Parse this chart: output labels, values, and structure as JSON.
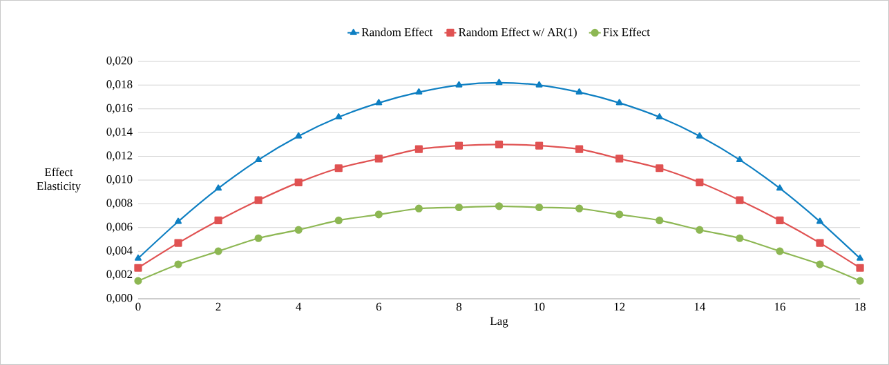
{
  "chart_data": {
    "type": "line",
    "xlabel": "Lag",
    "ylabel": "Effect Elasticity",
    "x": [
      0,
      1,
      2,
      3,
      4,
      5,
      6,
      7,
      8,
      9,
      10,
      11,
      12,
      13,
      14,
      15,
      16,
      17,
      18
    ],
    "series": [
      {
        "name": "Random Effect",
        "color": "#0e7fc2",
        "marker": "triangle",
        "values": [
          0.0034,
          0.0065,
          0.0093,
          0.0117,
          0.0137,
          0.0153,
          0.0165,
          0.0174,
          0.018,
          0.0182,
          0.018,
          0.0174,
          0.0165,
          0.0153,
          0.0137,
          0.0117,
          0.0093,
          0.0065,
          0.0034
        ]
      },
      {
        "name": "Random Effect w/ AR(1)",
        "color": "#e05252",
        "marker": "square",
        "values": [
          0.0026,
          0.0047,
          0.0066,
          0.0083,
          0.0098,
          0.011,
          0.0118,
          0.0126,
          0.0129,
          0.013,
          0.0129,
          0.0126,
          0.0118,
          0.011,
          0.0098,
          0.0083,
          0.0066,
          0.0047,
          0.0026
        ]
      },
      {
        "name": "Fix Effect",
        "color": "#8db753",
        "marker": "circle",
        "values": [
          0.0015,
          0.0029,
          0.004,
          0.0051,
          0.0058,
          0.0066,
          0.0071,
          0.0076,
          0.0077,
          0.0078,
          0.0077,
          0.0076,
          0.0071,
          0.0066,
          0.0058,
          0.0051,
          0.004,
          0.0029,
          0.0015
        ]
      }
    ],
    "xlim": [
      0,
      18
    ],
    "xticks": [
      0,
      2,
      4,
      6,
      8,
      10,
      12,
      14,
      16,
      18
    ],
    "ylim": [
      0,
      0.02
    ],
    "yticks": [
      {
        "value": 0,
        "label": "0,000"
      },
      {
        "value": 0.002,
        "label": "0,002"
      },
      {
        "value": 0.004,
        "label": "0,004"
      },
      {
        "value": 0.006,
        "label": "0,006"
      },
      {
        "value": 0.008,
        "label": "0,008"
      },
      {
        "value": 0.01,
        "label": "0,010"
      },
      {
        "value": 0.012,
        "label": "0,012"
      },
      {
        "value": 0.014,
        "label": "0,014"
      },
      {
        "value": 0.016,
        "label": "0,016"
      },
      {
        "value": 0.018,
        "label": "0,018"
      },
      {
        "value": 0.02,
        "label": "0,020"
      }
    ],
    "grid": "y",
    "legend": "top",
    "line_style": "solid"
  }
}
